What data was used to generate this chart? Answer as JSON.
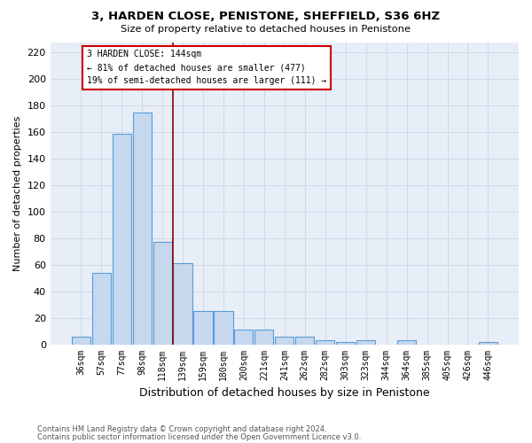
{
  "title1": "3, HARDEN CLOSE, PENISTONE, SHEFFIELD, S36 6HZ",
  "title2": "Size of property relative to detached houses in Penistone",
  "xlabel": "Distribution of detached houses by size in Penistone",
  "ylabel": "Number of detached properties",
  "footnote1": "Contains HM Land Registry data © Crown copyright and database right 2024.",
  "footnote2": "Contains public sector information licensed under the Open Government Licence v3.0.",
  "bins": [
    "36sqm",
    "57sqm",
    "77sqm",
    "98sqm",
    "118sqm",
    "139sqm",
    "159sqm",
    "180sqm",
    "200sqm",
    "221sqm",
    "241sqm",
    "262sqm",
    "282sqm",
    "303sqm",
    "323sqm",
    "344sqm",
    "364sqm",
    "385sqm",
    "405sqm",
    "426sqm",
    "446sqm"
  ],
  "values": [
    6,
    54,
    159,
    175,
    77,
    61,
    25,
    25,
    11,
    11,
    6,
    6,
    3,
    2,
    3,
    0,
    3,
    0,
    0,
    0,
    2
  ],
  "bar_color": "#c5d8ee",
  "bar_edge_color": "#5b9bd5",
  "annotation_text": "3 HARDEN CLOSE: 144sqm\n← 81% of detached houses are smaller (477)\n19% of semi-detached houses are larger (111) →",
  "vline_x": 4.5,
  "ylim": [
    0,
    228
  ],
  "yticks": [
    0,
    20,
    40,
    60,
    80,
    100,
    120,
    140,
    160,
    180,
    200,
    220
  ],
  "grid_color": "#d0d8e8",
  "bg_color": "#e8eef8"
}
